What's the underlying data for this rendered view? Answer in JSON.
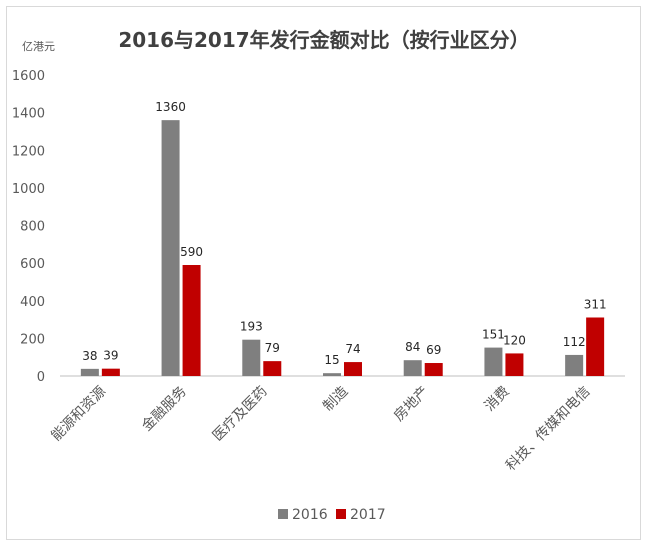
{
  "chart_data": {
    "type": "bar",
    "title": "2016与2017年发行金额对比（按行业区分）",
    "unit_label": "亿港元",
    "categories": [
      "能源和资源",
      "金融服务",
      "医疗及医药",
      "制造",
      "房地产",
      "消费",
      "科技、传媒和电信"
    ],
    "series": [
      {
        "name": "2016",
        "values": [
          38,
          1360,
          193,
          15,
          84,
          151,
          112
        ],
        "color": "#7f7f7f"
      },
      {
        "name": "2017",
        "values": [
          39,
          590,
          79,
          74,
          69,
          120,
          311
        ],
        "color": "#c00000"
      }
    ],
    "ylim": [
      0,
      1600
    ],
    "yticks": [
      "0",
      "200",
      "400",
      "600",
      "800",
      "1000",
      "1200",
      "1400",
      "1600"
    ],
    "grid": false,
    "legend_position": "bottom"
  }
}
